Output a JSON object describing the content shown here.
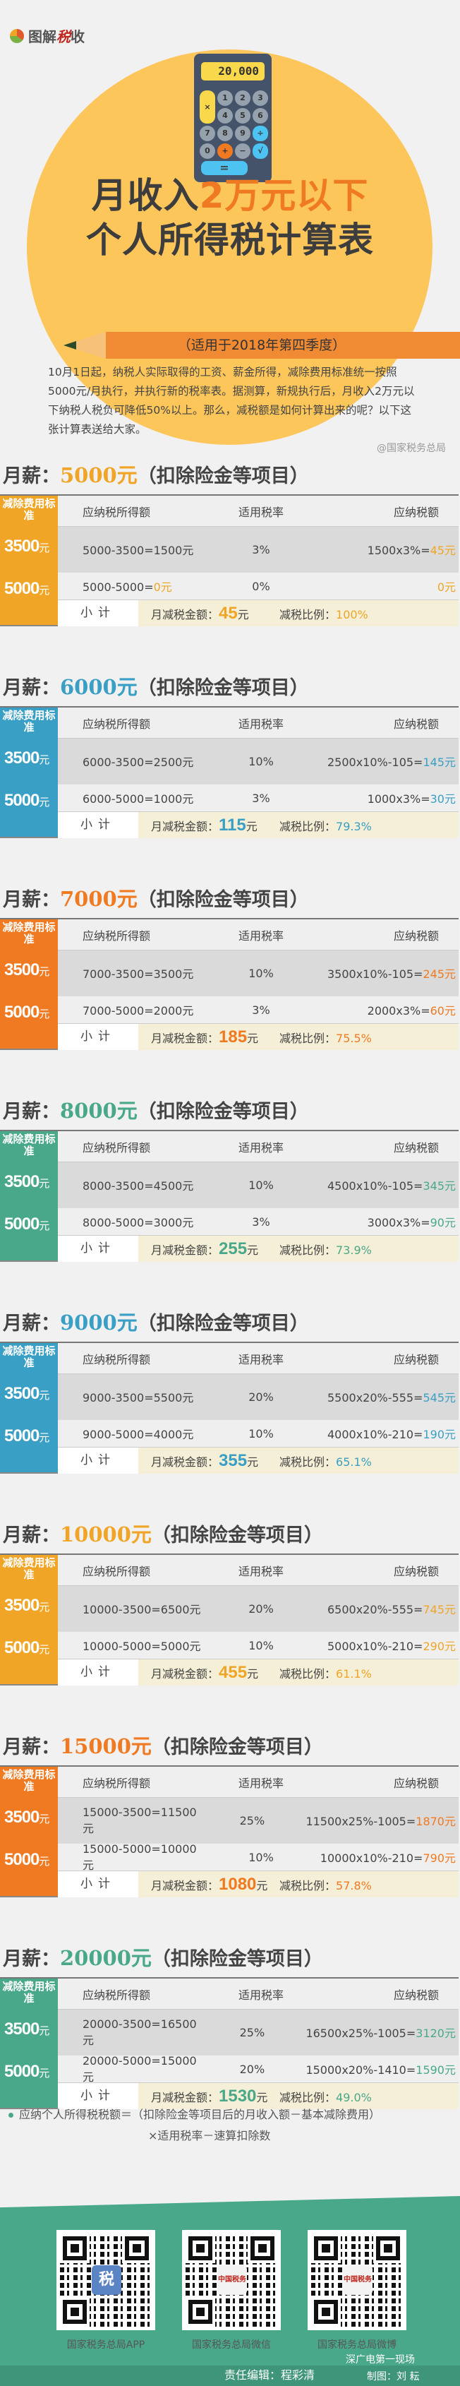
{
  "header": {
    "logo_text_1": "图解",
    "logo_text_red": "税",
    "logo_text_2": "收",
    "calculator_display": "20,000",
    "calculator_keys": [
      "1",
      "2",
      "3",
      "×",
      "4",
      "5",
      "6",
      "",
      "7",
      "8",
      "9",
      "÷",
      "0",
      "+",
      "−",
      "√"
    ],
    "calculator_equals": "=",
    "title_line1_prefix": "月收入",
    "title_line1_highlight": "2万元以下",
    "title_line2": "个人所得税计算表",
    "subtitle": "（适用于2018年第四季度）",
    "intro": "10月1日起，纳税人实际取得的工资、薪金所得，减除费用标准统一按照5000元/月执行，并执行新的税率表。据测算，新规执行后，月收入2万元以下纳税人税负可降低50%以上。那么，减税额是如何计算出来的呢？以下这张计算表送给大家。",
    "source": "@国家税务总局"
  },
  "labels": {
    "salary_prefix": "月薪：",
    "salary_suffix": "（扣除险金等项目）",
    "side_header": "减除费用标准",
    "std_3500": "3500",
    "std_5000": "5000",
    "yuan": "元",
    "col_taxable": "应纳税所得额",
    "col_rate": "适用税率",
    "col_tax": "应纳税额",
    "subtotal": "小计",
    "monthly_reduction": "月减税金额：",
    "reduction_ratio": "减税比例："
  },
  "colors": {
    "orange_yellow": "#f0a526",
    "blue": "#3a9fc4",
    "orange": "#f07a22",
    "green": "#4aa88a"
  },
  "blocks": [
    {
      "salary": "5000元",
      "color": "#f0a526",
      "row1": {
        "taxable": "5000-3500=1500元",
        "rate": "3%",
        "tax_expr": "1500x3%=",
        "tax_result": "45元"
      },
      "row2": {
        "taxable_expr": "5000-5000=",
        "taxable_result": "0元",
        "rate": "0%",
        "tax_expr": "",
        "tax_result": "0元"
      },
      "reduction": "45",
      "ratio": "100%"
    },
    {
      "salary": "6000元",
      "color": "#3a9fc4",
      "row1": {
        "taxable": "6000-3500=2500元",
        "rate": "10%",
        "tax_expr": "2500x10%-105=",
        "tax_result": "145元"
      },
      "row2": {
        "taxable_expr": "6000-5000=1000元",
        "taxable_result": "",
        "rate": "3%",
        "tax_expr": "1000x3%=",
        "tax_result": "30元"
      },
      "reduction": "115",
      "ratio": "79.3%"
    },
    {
      "salary": "7000元",
      "color": "#f07a22",
      "row1": {
        "taxable": "7000-3500=3500元",
        "rate": "10%",
        "tax_expr": "3500x10%-105=",
        "tax_result": "245元"
      },
      "row2": {
        "taxable_expr": "7000-5000=2000元",
        "taxable_result": "",
        "rate": "3%",
        "tax_expr": "2000x3%=",
        "tax_result": "60元"
      },
      "reduction": "185",
      "ratio": "75.5%"
    },
    {
      "salary": "8000元",
      "color": "#4aa88a",
      "row1": {
        "taxable": "8000-3500=4500元",
        "rate": "10%",
        "tax_expr": "4500x10%-105=",
        "tax_result": "345元"
      },
      "row2": {
        "taxable_expr": "8000-5000=3000元",
        "taxable_result": "",
        "rate": "3%",
        "tax_expr": "3000x3%=",
        "tax_result": "90元"
      },
      "reduction": "255",
      "ratio": "73.9%"
    },
    {
      "salary": "9000元",
      "color": "#3a9fc4",
      "row1": {
        "taxable": "9000-3500=5500元",
        "rate": "20%",
        "tax_expr": "5500x20%-555=",
        "tax_result": "545元"
      },
      "row2": {
        "taxable_expr": "9000-5000=4000元",
        "taxable_result": "",
        "rate": "10%",
        "tax_expr": "4000x10%-210=",
        "tax_result": "190元"
      },
      "reduction": "355",
      "ratio": "65.1%"
    },
    {
      "salary": "10000元",
      "color": "#f0a526",
      "row1": {
        "taxable": "10000-3500=6500元",
        "rate": "20%",
        "tax_expr": "6500x20%-555=",
        "tax_result": "745元"
      },
      "row2": {
        "taxable_expr": "10000-5000=5000元",
        "taxable_result": "",
        "rate": "10%",
        "tax_expr": "5000x10%-210=",
        "tax_result": "290元"
      },
      "reduction": "455",
      "ratio": "61.1%"
    },
    {
      "salary": "15000元",
      "color": "#f07a22",
      "row1": {
        "taxable": "15000-3500=11500元",
        "rate": "25%",
        "tax_expr": "11500x25%-1005=",
        "tax_result": "1870元"
      },
      "row2": {
        "taxable_expr": "15000-5000=10000元",
        "taxable_result": "",
        "rate": "10%",
        "tax_expr": "10000x10%-210=",
        "tax_result": "790元"
      },
      "reduction": "1080",
      "ratio": "57.8%"
    },
    {
      "salary": "20000元",
      "color": "#4aa88a",
      "row1": {
        "taxable": "20000-3500=16500元",
        "rate": "25%",
        "tax_expr": "16500x25%-1005=",
        "tax_result": "3120元"
      },
      "row2": {
        "taxable_expr": "20000-5000=15000元",
        "taxable_result": "",
        "rate": "20%",
        "tax_expr": "15000x20%-1410=",
        "tax_result": "1590元"
      },
      "reduction": "1530",
      "ratio": "49.0%"
    }
  ],
  "formula": {
    "line1": "应纳个人所得税税额＝（扣除险金等项目后的月收入额－基本减除费用）",
    "line2": "×适用税率－速算扣除数"
  },
  "footer": {
    "qr_codes": [
      {
        "label": "国家税务总局APP",
        "center": "税"
      },
      {
        "label": "国家税务总局微信",
        "center": "中国税务"
      },
      {
        "label": "国家税务总局微博",
        "center": "中国税务"
      }
    ],
    "editor": "责任编辑：程彩清",
    "watermark": "深广电第一现场",
    "maker": "制图：刘  耘"
  }
}
